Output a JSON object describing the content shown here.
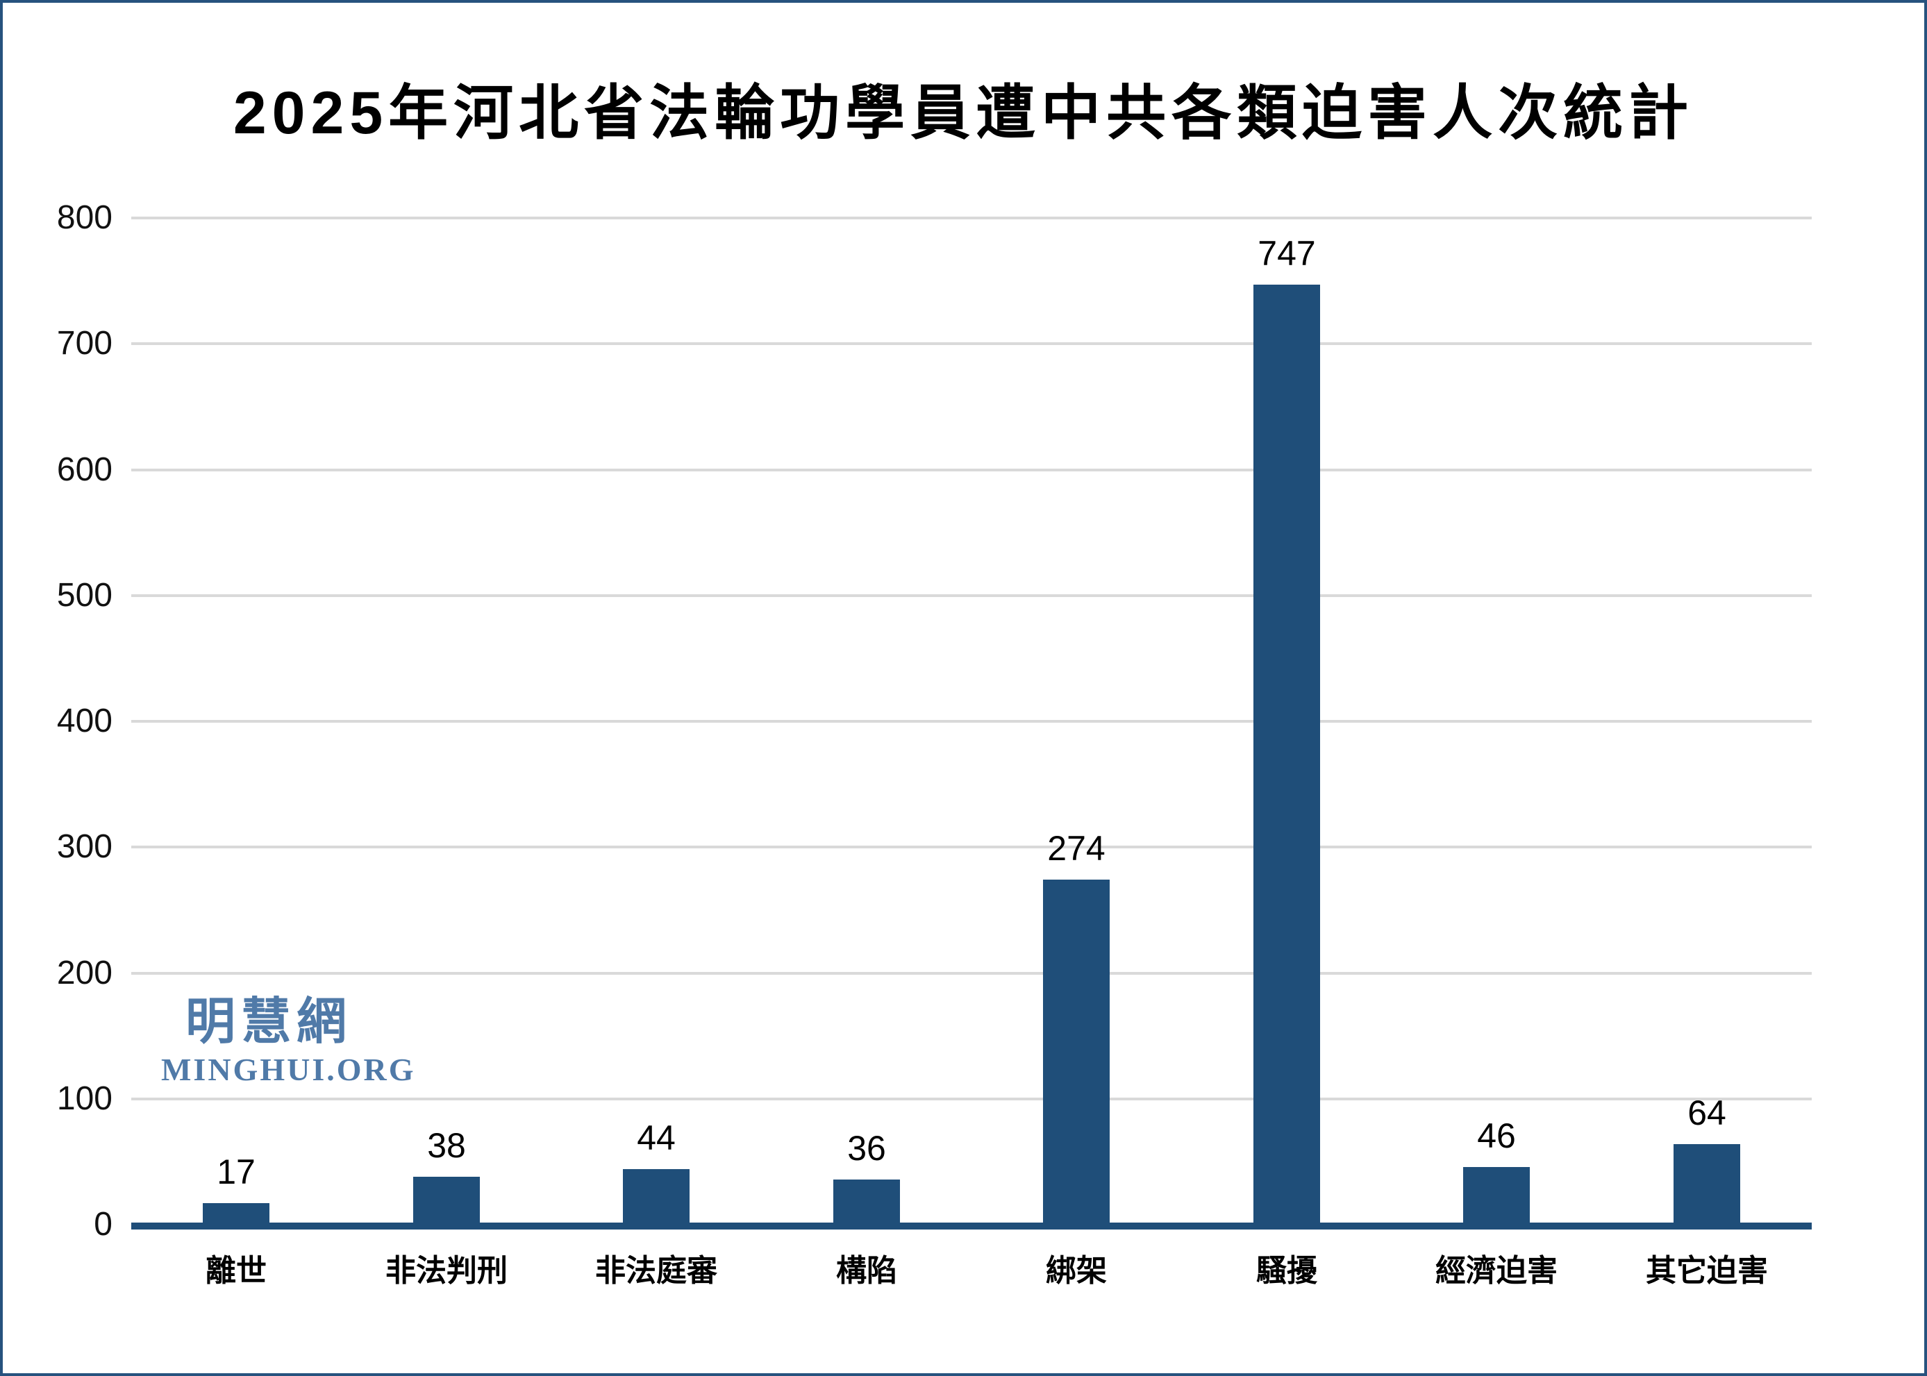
{
  "title": "2025年河北省法輪功學員遭中共各類迫害人次統計",
  "watermark": {
    "cjk": "明慧網",
    "latin": "MINGHUI.ORG"
  },
  "colors": {
    "bar": "#1f4e79",
    "axis_line": "#1f4e79",
    "gridline": "#d9d9d9",
    "watermark": "#507aa8",
    "frame_border": "#27527e",
    "text": "#000000"
  },
  "chart_data": {
    "type": "bar",
    "title": "2025年河北省法輪功學員遭中共各類迫害人次統計",
    "categories": [
      "離世",
      "非法判刑",
      "非法庭審",
      "構陷",
      "綁架",
      "騷擾",
      "經濟迫害",
      "其它迫害"
    ],
    "values": [
      17,
      38,
      44,
      36,
      274,
      747,
      46,
      64
    ],
    "xlabel": "",
    "ylabel": "",
    "ylim": [
      0,
      800
    ],
    "yticks": [
      0,
      100,
      200,
      300,
      400,
      500,
      600,
      700,
      800
    ],
    "grid": true,
    "legend": false,
    "data_labels": true,
    "bar_color": "#1f4e79"
  }
}
